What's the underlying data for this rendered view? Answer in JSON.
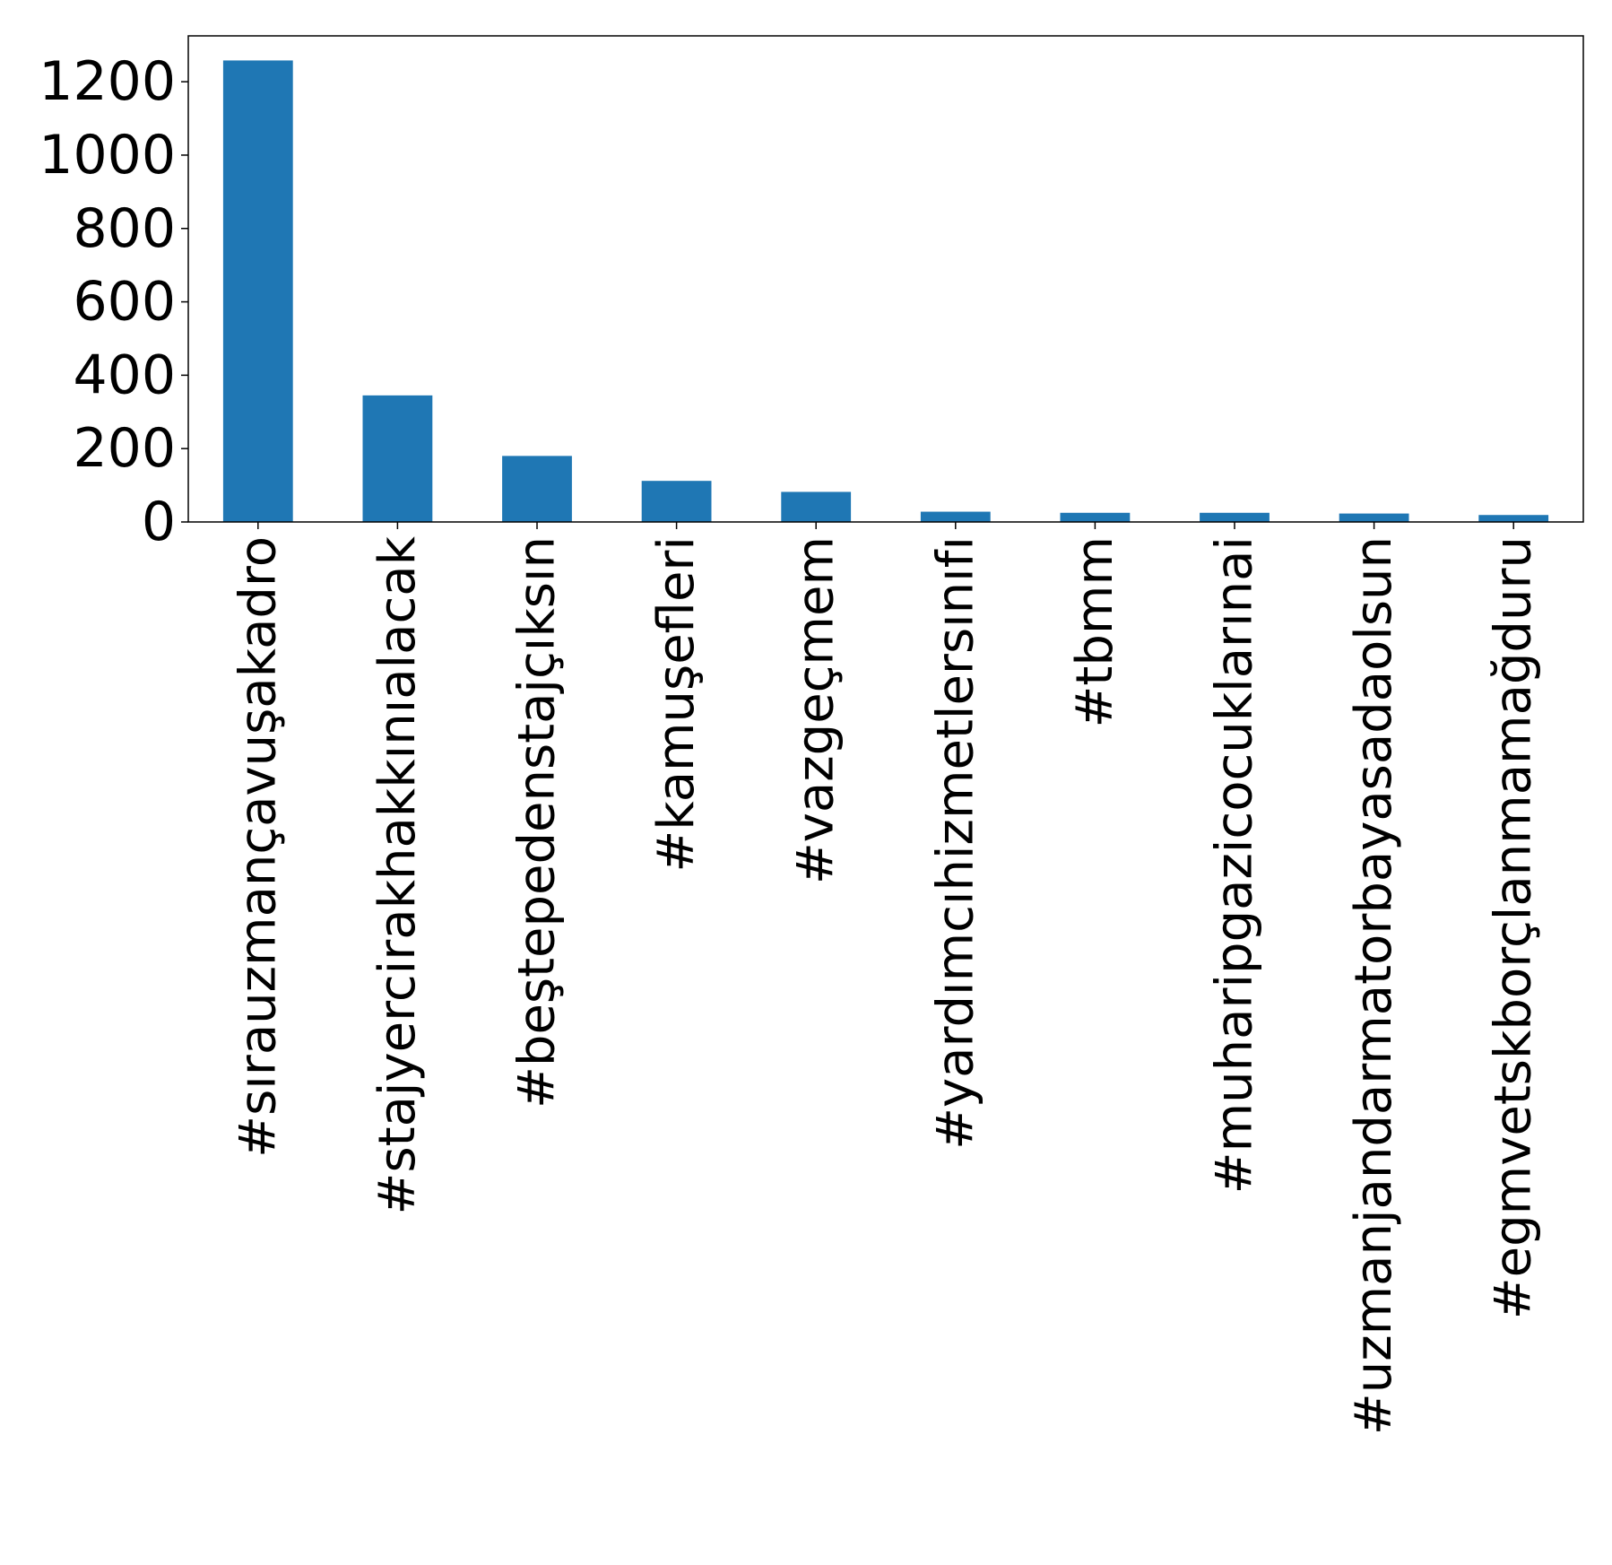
{
  "chart_data": {
    "type": "bar",
    "title": "",
    "xlabel": "",
    "ylabel": "",
    "categories": [
      "#sırauzmançavuşakadro",
      "#stajyercirakhakkınıalacak",
      "#beştepedenstajçıksın",
      "#kamuşefleri",
      "#vazgeçmem",
      "#yardımcıhizmetlersınıfı",
      "#tbmm",
      "#muharipgazicocuklarınai",
      "#uzmanjandarmatorbayasadaolsun",
      "#egmvetskborçlanmamağduru"
    ],
    "values": [
      1258,
      345,
      180,
      112,
      82,
      28,
      25,
      25,
      23,
      19
    ],
    "ylim": [
      0,
      1325
    ],
    "yticks": [
      0,
      200,
      400,
      600,
      800,
      1000,
      1200
    ],
    "grid": false,
    "legend": "none",
    "colors": {
      "bar": "#1f77b4",
      "axis": "#000000"
    }
  }
}
